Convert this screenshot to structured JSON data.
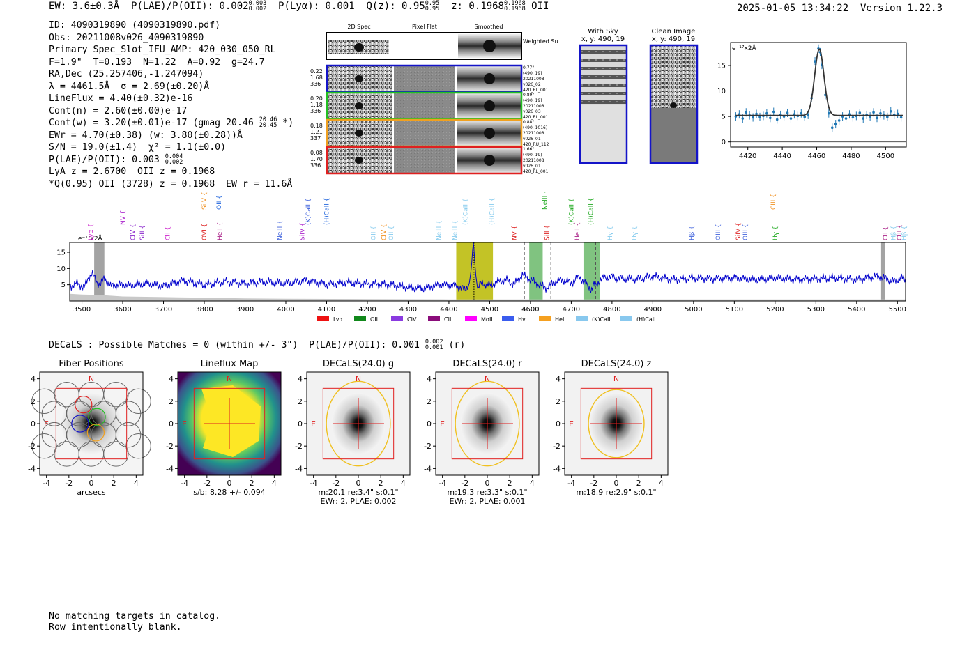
{
  "header": {
    "ew": "EW: 3.6±0.3Å",
    "plae_label": "P(LAE)/P(OII): 0.002",
    "plae_hi": "0.003",
    "plae_lo": "0.002",
    "plya": "P(Lyα): 0.001",
    "q_label": "Q(z): 0.95",
    "q_hi": "0.95",
    "q_lo": "0.95",
    "z_label": "z: 0.1968",
    "z_hi": "0.1968",
    "z_lo": "0.1968",
    "z_line": "OII",
    "timestamp": "2025-01-05 13:34:22",
    "version": "Version 1.22.3"
  },
  "info": {
    "id": "ID: 4090319890 (4090319890.pdf)",
    "obs": "Obs: 20211008v026_4090319890",
    "primary": "Primary Spec_Slot_IFU_AMP: 420_030_050_RL",
    "fwhm": "F=1.9\"  T=0.193  N=1.22  A=0.92  g=24.7",
    "radec": "RA,Dec (25.257406,-1.247094)",
    "lambda": "λ = 4461.5Å  σ = 2.69(±0.20)Å",
    "lineflux": "LineFlux = 4.40(±0.32)e-16",
    "contn": "Cont(n) = 2.60(±0.00)e-17",
    "contw": "Cont(w) = 3.20(±0.01)e-17 (gmag 20.46",
    "contw_hi": "20.46",
    "contw_lo": "20.45",
    "contw_end": "*)",
    "ewr": "EWr = 4.70(±0.38) (w: 3.80(±0.28))Å",
    "sn": "S/N = 19.0(±1.4)  χ² = 1.1(±0.0)",
    "plae": "P(LAE)/P(OII): 0.003",
    "plae_hi": "0.004",
    "plae_lo": "0.002",
    "lya": "LyA z = 2.6700  OII z = 0.1968",
    "q": "*Q(0.95) OII (3728) z = 0.1968  EW r = 11.6Å"
  },
  "cutouts": {
    "col_titles": [
      "2D Spec",
      "Pixel Flat",
      "Smoothed"
    ],
    "weighted_sum": "Weighted Sum",
    "rows": [
      {
        "left": [
          "0.22",
          "1.68",
          "336"
        ],
        "right": [
          "0.77\"",
          "(490, 19)",
          "20211008",
          "v026_02",
          "420_RL_001"
        ],
        "color": "#1414c8"
      },
      {
        "left": [
          "0.20",
          "1.18",
          "336"
        ],
        "right": [
          "0.89\"",
          "(490, 19)",
          "20211008",
          "v026_03",
          "420_RL_001"
        ],
        "color": "#22c022"
      },
      {
        "left": [
          "0.18",
          "1.21",
          "337"
        ],
        "right": [
          "0.88\"",
          "(490, 1016)",
          "20211008",
          "v026_01",
          "420_RU_112"
        ],
        "color": "#f0a020"
      },
      {
        "left": [
          "0.08",
          "1.70",
          "336"
        ],
        "right": [
          "1.66\"",
          "(490, 19)",
          "20211008",
          "v026_01",
          "420_RL_001"
        ],
        "color": "#e02020"
      }
    ],
    "with_sky_title": "With Sky",
    "with_sky_coords": "x, y: 490, 19",
    "clean_title": "Clean Image",
    "clean_coords": "x, y: 490, 19"
  },
  "zoom_chart": {
    "type": "scatter",
    "unit_label": "e⁻¹⁷x2Å",
    "xlim": [
      4410,
      4512
    ],
    "ylim": [
      -1,
      19.5
    ],
    "xticks": [
      4420,
      4440,
      4460,
      4480,
      4500
    ],
    "yticks": [
      0,
      5,
      10,
      15
    ],
    "fit_center": 4461.5,
    "fit_sigma": 2.69,
    "fit_amp": 13.0,
    "fit_base": 5.2,
    "points": [
      [
        4413,
        5.0
      ],
      [
        4415,
        5.4
      ],
      [
        4417,
        4.6
      ],
      [
        4419,
        5.8
      ],
      [
        4421,
        5.2
      ],
      [
        4423,
        4.8
      ],
      [
        4425,
        5.5
      ],
      [
        4427,
        4.9
      ],
      [
        4429,
        5.1
      ],
      [
        4431,
        5.6
      ],
      [
        4433,
        4.7
      ],
      [
        4435,
        5.9
      ],
      [
        4437,
        4.4
      ],
      [
        4439,
        5.3
      ],
      [
        4441,
        5.0
      ],
      [
        4443,
        5.7
      ],
      [
        4445,
        4.6
      ],
      [
        4447,
        5.4
      ],
      [
        4449,
        5.1
      ],
      [
        4451,
        5.6
      ],
      [
        4453,
        4.9
      ],
      [
        4455,
        5.3
      ],
      [
        4457,
        8.6
      ],
      [
        4459,
        15.8
      ],
      [
        4461,
        18.3
      ],
      [
        4462,
        17.6
      ],
      [
        4463,
        15.1
      ],
      [
        4465,
        9.2
      ],
      [
        4467,
        5.6
      ],
      [
        4469,
        2.8
      ],
      [
        4471,
        3.5
      ],
      [
        4473,
        4.2
      ],
      [
        4475,
        5.0
      ],
      [
        4477,
        4.6
      ],
      [
        4479,
        5.4
      ],
      [
        4481,
        4.8
      ],
      [
        4483,
        5.1
      ],
      [
        4485,
        5.7
      ],
      [
        4487,
        4.6
      ],
      [
        4489,
        5.3
      ],
      [
        4491,
        5.0
      ],
      [
        4493,
        5.8
      ],
      [
        4495,
        4.7
      ],
      [
        4497,
        5.6
      ],
      [
        4499,
        5.2
      ],
      [
        4501,
        4.9
      ],
      [
        4503,
        6.0
      ],
      [
        4505,
        5.3
      ],
      [
        4507,
        5.5
      ],
      [
        4509,
        4.8
      ]
    ]
  },
  "chart_data": {
    "type": "line",
    "title": "",
    "xlabel": "",
    "ylabel": "",
    "unit_label": "e⁻¹⁷x2Å",
    "xlim": [
      3470,
      5520
    ],
    "ylim": [
      0,
      18
    ],
    "xticks": [
      3500,
      3600,
      3700,
      3800,
      3900,
      4000,
      4100,
      4200,
      4300,
      4400,
      4500,
      4600,
      4700,
      4800,
      4900,
      5000,
      5100,
      5200,
      5300,
      5400,
      5500
    ],
    "yticks": [
      5,
      10,
      15
    ],
    "series": [
      {
        "name": "spectrum",
        "color": "#0000cc",
        "x": [
          3470,
          3490,
          3505,
          3515,
          3525,
          3535,
          3545,
          3555,
          3570,
          3590,
          3620,
          3660,
          3700,
          3750,
          3800,
          3850,
          3900,
          3950,
          4000,
          4050,
          4100,
          4150,
          4200,
          4250,
          4300,
          4340,
          4380,
          4420,
          4440,
          4450,
          4455,
          4458,
          4460,
          4462,
          4465,
          4470,
          4480,
          4500,
          4520,
          4540,
          4560,
          4580,
          4600,
          4620,
          4640,
          4660,
          4680,
          4700,
          4720,
          4740,
          4750,
          4755,
          4760,
          4770,
          4790,
          4820,
          4860,
          4900,
          4950,
          5000,
          5050,
          5100,
          5150,
          5200,
          5250,
          5300,
          5350,
          5400,
          5450,
          5470,
          5490,
          5510,
          5520
        ],
        "y": [
          4.5,
          5.5,
          4.0,
          7.0,
          8.5,
          6.0,
          5.0,
          7.0,
          4.5,
          5.0,
          4.8,
          5.5,
          4.5,
          6.2,
          5.0,
          6.0,
          5.2,
          6.0,
          5.5,
          6.2,
          5.0,
          5.8,
          5.2,
          5.0,
          4.2,
          4.0,
          5.0,
          4.5,
          3.5,
          5.5,
          10.0,
          15.5,
          18.0,
          15.0,
          9.0,
          4.0,
          5.5,
          4.8,
          6.0,
          6.5,
          5.0,
          8.0,
          6.5,
          5.0,
          4.0,
          6.0,
          6.5,
          5.5,
          7.5,
          4.5,
          3.5,
          5.0,
          4.5,
          6.5,
          7.5,
          7.0,
          6.8,
          7.5,
          6.5,
          7.2,
          6.8,
          7.0,
          6.6,
          7.2,
          6.5,
          6.8,
          7.2,
          6.5,
          7.5,
          7.0,
          6.0,
          7.2,
          6.5
        ]
      },
      {
        "name": "error",
        "color": "#c8c8c8",
        "x": [
          3470,
          3500,
          3550,
          3600,
          3700,
          3800,
          3900,
          4000,
          4200,
          4400,
          4600,
          4800,
          5000,
          5200,
          5400,
          5520
        ],
        "y": [
          2.2,
          2.0,
          1.8,
          1.4,
          1.2,
          1.0,
          0.8,
          0.7,
          0.6,
          0.5,
          0.5,
          0.5,
          0.5,
          0.5,
          0.5,
          0.5
        ]
      }
    ],
    "highlights": [
      {
        "label": "OII",
        "x0": 4418,
        "x1": 4508,
        "color": "#b9b800"
      },
      {
        "label": "SII band",
        "x0": 4597,
        "x1": 4630,
        "color": "#6ab86a"
      },
      {
        "label": "CaII band",
        "x0": 4730,
        "x1": 4770,
        "color": "#6ab86a"
      },
      {
        "label": "masked blue",
        "x0": 3530,
        "x1": 3555,
        "color": "#999999"
      },
      {
        "label": "masked red",
        "x0": 5460,
        "x1": 5470,
        "color": "#999999"
      }
    ],
    "dashed_lines": [
      4585,
      4650,
      4760
    ],
    "dotted_line": 4461.5,
    "line_markers": [
      {
        "name": "Lyα",
        "x": 3521,
        "row": 2,
        "color": "#cc22cc"
      },
      {
        "name": "NV",
        "x": 3600,
        "row": 1,
        "color": "#aa22cc"
      },
      {
        "name": "CIV",
        "x": 3625,
        "row": 2,
        "color": "#8822cc"
      },
      {
        "name": "SiII",
        "x": 3648,
        "row": 2,
        "color": "#8822cc"
      },
      {
        "name": "CII",
        "x": 3710,
        "row": 2,
        "color": "#cc22cc"
      },
      {
        "name": "SiIV",
        "x": 3800,
        "row": 0,
        "color": "#f09020"
      },
      {
        "name": "OVI",
        "x": 3800,
        "row": 2,
        "color": "#dd2222"
      },
      {
        "name": "OII",
        "x": 3836,
        "row": 0,
        "color": "#2266dd"
      },
      {
        "name": "HeII",
        "x": 3838,
        "row": 2,
        "color": "#aa2288"
      },
      {
        "name": "NeIII",
        "x": 3985,
        "row": 2,
        "color": "#4466dd"
      },
      {
        "name": "SiIV",
        "x": 4040,
        "row": 2,
        "color": "#aa22cc"
      },
      {
        "name": "(K)CaII",
        "x": 4055,
        "row": 1,
        "color": "#4466dd"
      },
      {
        "name": "(H)CaII",
        "x": 4100,
        "row": 1,
        "color": "#2266dd"
      },
      {
        "name": "OII",
        "x": 4215,
        "row": 2,
        "color": "#88ccee"
      },
      {
        "name": "CIV",
        "x": 4240,
        "row": 2,
        "color": "#f09020"
      },
      {
        "name": "OII",
        "x": 4258,
        "row": 2,
        "color": "#88ccee"
      },
      {
        "name": "NeIII",
        "x": 4375,
        "row": 2,
        "color": "#88ccee"
      },
      {
        "name": "NeIII",
        "x": 4415,
        "row": 2,
        "color": "#88ccee"
      },
      {
        "name": "(K)CaII",
        "x": 4440,
        "row": 1,
        "color": "#88ccee"
      },
      {
        "name": "(H)CaII",
        "x": 4505,
        "row": 1,
        "color": "#88ccee"
      },
      {
        "name": "NV",
        "x": 4560,
        "row": 2,
        "color": "#dd2222"
      },
      {
        "name": "NeIII",
        "x": 4635,
        "row": 0,
        "color": "#22aa22"
      },
      {
        "name": "SiII",
        "x": 4640,
        "row": 2,
        "color": "#dd2222"
      },
      {
        "name": "(K)CaII",
        "x": 4700,
        "row": 1,
        "color": "#22aa22"
      },
      {
        "name": "HeII",
        "x": 4715,
        "row": 2,
        "color": "#aa2288"
      },
      {
        "name": "(H)CaII",
        "x": 4748,
        "row": 1,
        "color": "#22aa22"
      },
      {
        "name": "Hγ",
        "x": 4795,
        "row": 2,
        "color": "#88ccee"
      },
      {
        "name": "Hγ",
        "x": 4855,
        "row": 2,
        "color": "#88ccee"
      },
      {
        "name": "Hβ",
        "x": 4995,
        "row": 2,
        "color": "#4466dd"
      },
      {
        "name": "OIII",
        "x": 5060,
        "row": 2,
        "color": "#4466dd"
      },
      {
        "name": "SiIV",
        "x": 5110,
        "row": 2,
        "color": "#dd2222"
      },
      {
        "name": "OIII",
        "x": 5127,
        "row": 2,
        "color": "#4466dd"
      },
      {
        "name": "CIII",
        "x": 5195,
        "row": 0,
        "color": "#f09020"
      },
      {
        "name": "Hγ",
        "x": 5200,
        "row": 2,
        "color": "#22aa22"
      },
      {
        "name": "CII",
        "x": 5470,
        "row": 2,
        "color": "#aa2288"
      },
      {
        "name": "Hβ",
        "x": 5490,
        "row": 2,
        "color": "#88ccee"
      },
      {
        "name": "CIII",
        "x": 5505,
        "row": 2,
        "color": "#aa2288"
      },
      {
        "name": "Hβ",
        "x": 5517,
        "row": 2,
        "color": "#88ccee"
      }
    ],
    "legend": [
      {
        "label": "Lyα",
        "color": "#ee1111"
      },
      {
        "label": "OII",
        "color": "#11881b"
      },
      {
        "label": "CIV",
        "color": "#8a3ae0"
      },
      {
        "label": "CIII",
        "color": "#8a0c7a"
      },
      {
        "label": "MgII",
        "color": "#ff00ff"
      },
      {
        "label": "Hγ",
        "color": "#3a5cee"
      },
      {
        "label": "HeII",
        "color": "#f5a020"
      },
      {
        "label": "(K)CaII",
        "color": "#88c8ee"
      },
      {
        "label": "(H)CaII",
        "color": "#88c8ee"
      }
    ]
  },
  "decals": {
    "text": "DECaLS : Possible Matches = 0 (within +/- 3\")  P(LAE)/P(OII): 0.001",
    "plae_hi": "0.002",
    "plae_lo": "0.001",
    "band": "(r)"
  },
  "panels": [
    {
      "title": "Fiber Positions",
      "caption1": "arcsecs",
      "caption2": "",
      "kind": "fiber"
    },
    {
      "title": "Lineflux Map",
      "caption1": "s/b: 8.28 +/- 0.094",
      "caption2": "",
      "kind": "lineflux"
    },
    {
      "title": "DECaLS(24.0) g",
      "caption1": "m:20.1  re:3.4\"  s:0.1\"",
      "caption2": "EWr: 2, PLAE: 0.002",
      "kind": "image"
    },
    {
      "title": "DECaLS(24.0) r",
      "caption1": "m:19.3  re:3.3\"  s:0.1\"",
      "caption2": "EWr: 2, PLAE: 0.001",
      "kind": "image"
    },
    {
      "title": "DECaLS(24.0) z",
      "caption1": "m:18.9  re:2.9\"  s:0.1\"",
      "caption2": "",
      "kind": "image"
    }
  ],
  "panel_axes": {
    "ticks": [
      "-4",
      "-2",
      "0",
      "2",
      "4"
    ],
    "north": "N",
    "east": "E"
  },
  "footer": {
    "line1": "No matching targets in catalog.",
    "line2": "Row intentionally blank."
  }
}
